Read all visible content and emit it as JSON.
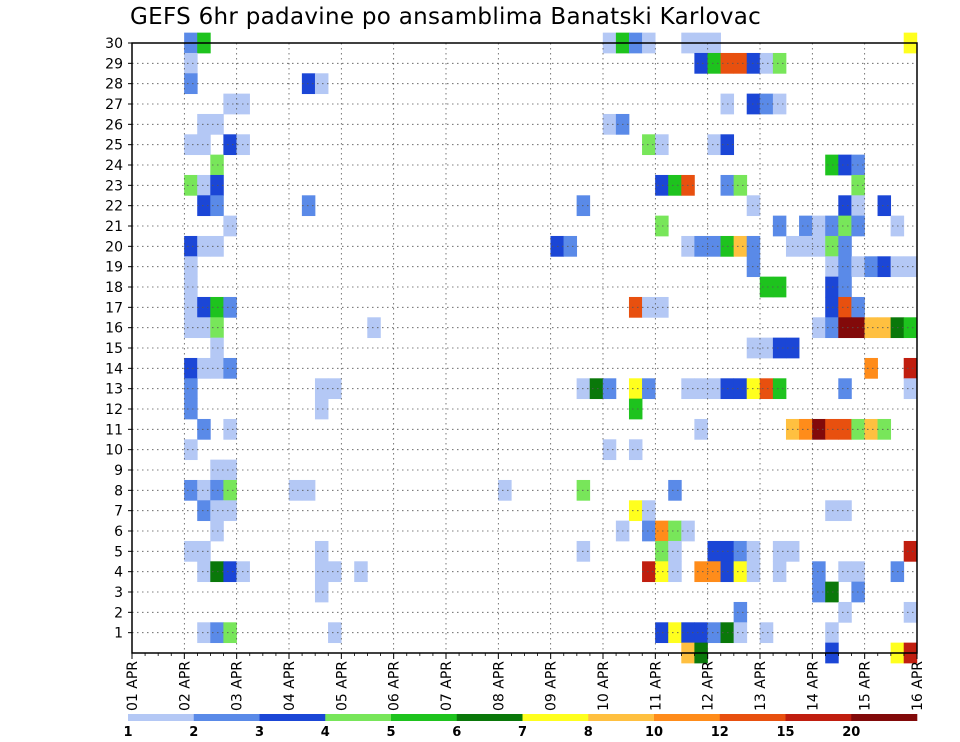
{
  "chart_data": {
    "type": "heatmap",
    "title": "GEFS 6hr padavine po ansamblima Banatski Karlovac",
    "x": {
      "unit": "6-hour step",
      "range_steps": [
        0,
        60
      ],
      "tick_labels": [
        "01 APR",
        "02 APR",
        "03 APR",
        "04 APR",
        "05 APR",
        "06 APR",
        "07 APR",
        "08 APR",
        "09 APR",
        "10 APR",
        "11 APR",
        "12 APR",
        "13 APR",
        "14 APR",
        "15 APR",
        "16 APR"
      ]
    },
    "y": {
      "unit": "ensemble member",
      "range": [
        0,
        30
      ],
      "tick_labels": [
        "1",
        "2",
        "3",
        "4",
        "5",
        "6",
        "7",
        "8",
        "9",
        "10",
        "11",
        "12",
        "13",
        "14",
        "15",
        "16",
        "17",
        "18",
        "19",
        "20",
        "21",
        "22",
        "23",
        "24",
        "25",
        "26",
        "27",
        "28",
        "29",
        "30"
      ]
    },
    "grid": true,
    "colorbar": {
      "bins": [
        {
          "from": 1,
          "to": 2,
          "color": "#b4c8f5"
        },
        {
          "from": 2,
          "to": 3,
          "color": "#5a8ae8"
        },
        {
          "from": 3,
          "to": 4,
          "color": "#1b46d6"
        },
        {
          "from": 4,
          "to": 5,
          "color": "#78e65a"
        },
        {
          "from": 5,
          "to": 6,
          "color": "#1ec31e"
        },
        {
          "from": 6,
          "to": 7,
          "color": "#0a780a"
        },
        {
          "from": 7,
          "to": 8,
          "color": "#ffff1e"
        },
        {
          "from": 8,
          "to": 10,
          "color": "#ffc040"
        },
        {
          "from": 10,
          "to": 12,
          "color": "#ff8c1a"
        },
        {
          "from": 12,
          "to": 15,
          "color": "#e8500f"
        },
        {
          "from": 15,
          "to": 20,
          "color": "#c01e0f"
        },
        {
          "from": 20,
          "to": 30,
          "color": "#820a0a"
        }
      ],
      "tick_labels": [
        "1",
        "2",
        "3",
        "4",
        "5",
        "6",
        "7",
        "8",
        "10",
        "12",
        "15",
        "20"
      ]
    },
    "cells_note": "each cell: [time step (6h), member, color bin index 0-11]",
    "cells": [
      [
        4,
        30,
        1
      ],
      [
        5,
        30,
        4
      ],
      [
        36,
        30,
        0
      ],
      [
        37,
        30,
        4
      ],
      [
        38,
        30,
        1
      ],
      [
        39,
        30,
        0
      ],
      [
        42,
        30,
        0
      ],
      [
        43,
        30,
        0
      ],
      [
        44,
        30,
        0
      ],
      [
        59,
        30,
        6
      ],
      [
        4,
        29,
        0
      ],
      [
        43,
        29,
        2
      ],
      [
        44,
        29,
        4
      ],
      [
        45,
        29,
        9
      ],
      [
        46,
        29,
        9
      ],
      [
        47,
        29,
        2
      ],
      [
        48,
        29,
        0
      ],
      [
        49,
        29,
        3
      ],
      [
        4,
        28,
        1
      ],
      [
        13,
        28,
        2
      ],
      [
        14,
        28,
        0
      ],
      [
        7,
        27,
        0
      ],
      [
        8,
        27,
        0
      ],
      [
        45,
        27,
        0
      ],
      [
        47,
        27,
        2
      ],
      [
        48,
        27,
        1
      ],
      [
        49,
        27,
        0
      ],
      [
        5,
        26,
        0
      ],
      [
        6,
        26,
        0
      ],
      [
        36,
        26,
        0
      ],
      [
        37,
        26,
        1
      ],
      [
        4,
        25,
        0
      ],
      [
        5,
        25,
        0
      ],
      [
        7,
        25,
        2
      ],
      [
        8,
        25,
        0
      ],
      [
        39,
        25,
        3
      ],
      [
        40,
        25,
        0
      ],
      [
        44,
        25,
        0
      ],
      [
        45,
        25,
        2
      ],
      [
        6,
        24,
        3
      ],
      [
        53,
        24,
        4
      ],
      [
        54,
        24,
        2
      ],
      [
        55,
        24,
        1
      ],
      [
        4,
        23,
        3
      ],
      [
        5,
        23,
        0
      ],
      [
        6,
        23,
        2
      ],
      [
        40,
        23,
        2
      ],
      [
        41,
        23,
        4
      ],
      [
        42,
        23,
        9
      ],
      [
        45,
        23,
        1
      ],
      [
        46,
        23,
        3
      ],
      [
        55,
        23,
        3
      ],
      [
        5,
        22,
        2
      ],
      [
        6,
        22,
        1
      ],
      [
        13,
        22,
        1
      ],
      [
        34,
        22,
        1
      ],
      [
        47,
        22,
        0
      ],
      [
        54,
        22,
        2
      ],
      [
        55,
        22,
        0
      ],
      [
        57,
        22,
        2
      ],
      [
        7,
        21,
        0
      ],
      [
        40,
        21,
        3
      ],
      [
        49,
        21,
        1
      ],
      [
        51,
        21,
        1
      ],
      [
        52,
        21,
        0
      ],
      [
        53,
        21,
        1
      ],
      [
        54,
        21,
        3
      ],
      [
        55,
        21,
        1
      ],
      [
        58,
        21,
        0
      ],
      [
        4,
        20,
        2
      ],
      [
        5,
        20,
        0
      ],
      [
        6,
        20,
        0
      ],
      [
        32,
        20,
        2
      ],
      [
        33,
        20,
        1
      ],
      [
        42,
        20,
        0
      ],
      [
        43,
        20,
        1
      ],
      [
        44,
        20,
        1
      ],
      [
        45,
        20,
        4
      ],
      [
        46,
        20,
        7
      ],
      [
        47,
        20,
        1
      ],
      [
        50,
        20,
        0
      ],
      [
        51,
        20,
        0
      ],
      [
        52,
        20,
        0
      ],
      [
        53,
        20,
        3
      ],
      [
        54,
        20,
        1
      ],
      [
        4,
        19,
        0
      ],
      [
        47,
        19,
        1
      ],
      [
        53,
        19,
        0
      ],
      [
        54,
        19,
        1
      ],
      [
        55,
        19,
        0
      ],
      [
        56,
        19,
        1
      ],
      [
        57,
        19,
        2
      ],
      [
        58,
        19,
        0
      ],
      [
        59,
        19,
        0
      ],
      [
        4,
        18,
        0
      ],
      [
        48,
        18,
        4
      ],
      [
        49,
        18,
        4
      ],
      [
        53,
        18,
        2
      ],
      [
        54,
        18,
        1
      ],
      [
        4,
        17,
        0
      ],
      [
        5,
        17,
        2
      ],
      [
        6,
        17,
        4
      ],
      [
        7,
        17,
        1
      ],
      [
        38,
        17,
        9
      ],
      [
        39,
        17,
        0
      ],
      [
        40,
        17,
        0
      ],
      [
        53,
        17,
        2
      ],
      [
        54,
        17,
        9
      ],
      [
        55,
        17,
        1
      ],
      [
        4,
        16,
        0
      ],
      [
        5,
        16,
        0
      ],
      [
        6,
        16,
        3
      ],
      [
        18,
        16,
        0
      ],
      [
        52,
        16,
        0
      ],
      [
        53,
        16,
        1
      ],
      [
        54,
        16,
        11
      ],
      [
        55,
        16,
        11
      ],
      [
        56,
        16,
        7
      ],
      [
        57,
        16,
        7
      ],
      [
        58,
        16,
        5
      ],
      [
        59,
        16,
        4
      ],
      [
        6,
        15,
        0
      ],
      [
        47,
        15,
        0
      ],
      [
        48,
        15,
        0
      ],
      [
        49,
        15,
        2
      ],
      [
        50,
        15,
        2
      ],
      [
        4,
        14,
        2
      ],
      [
        5,
        14,
        0
      ],
      [
        6,
        14,
        0
      ],
      [
        7,
        14,
        1
      ],
      [
        56,
        14,
        8
      ],
      [
        59,
        14,
        10
      ],
      [
        4,
        13,
        1
      ],
      [
        14,
        13,
        0
      ],
      [
        15,
        13,
        0
      ],
      [
        34,
        13,
        0
      ],
      [
        35,
        13,
        5
      ],
      [
        36,
        13,
        1
      ],
      [
        38,
        13,
        6
      ],
      [
        39,
        13,
        1
      ],
      [
        42,
        13,
        0
      ],
      [
        43,
        13,
        0
      ],
      [
        44,
        13,
        0
      ],
      [
        45,
        13,
        2
      ],
      [
        46,
        13,
        2
      ],
      [
        47,
        13,
        6
      ],
      [
        48,
        13,
        9
      ],
      [
        49,
        13,
        4
      ],
      [
        54,
        13,
        1
      ],
      [
        59,
        13,
        0
      ],
      [
        4,
        12,
        1
      ],
      [
        14,
        12,
        0
      ],
      [
        38,
        12,
        4
      ],
      [
        5,
        11,
        1
      ],
      [
        7,
        11,
        0
      ],
      [
        43,
        11,
        0
      ],
      [
        50,
        11,
        7
      ],
      [
        51,
        11,
        8
      ],
      [
        52,
        11,
        11
      ],
      [
        53,
        11,
        9
      ],
      [
        54,
        11,
        9
      ],
      [
        55,
        11,
        3
      ],
      [
        56,
        11,
        7
      ],
      [
        57,
        11,
        3
      ],
      [
        4,
        10,
        0
      ],
      [
        36,
        10,
        0
      ],
      [
        38,
        10,
        0
      ],
      [
        6,
        9,
        0
      ],
      [
        7,
        9,
        0
      ],
      [
        4,
        8,
        1
      ],
      [
        5,
        8,
        0
      ],
      [
        6,
        8,
        1
      ],
      [
        7,
        8,
        3
      ],
      [
        12,
        8,
        0
      ],
      [
        13,
        8,
        0
      ],
      [
        28,
        8,
        0
      ],
      [
        34,
        8,
        3
      ],
      [
        41,
        8,
        1
      ],
      [
        5,
        7,
        1
      ],
      [
        6,
        7,
        0
      ],
      [
        7,
        7,
        0
      ],
      [
        38,
        7,
        6
      ],
      [
        39,
        7,
        0
      ],
      [
        53,
        7,
        0
      ],
      [
        54,
        7,
        0
      ],
      [
        6,
        6,
        0
      ],
      [
        37,
        6,
        0
      ],
      [
        39,
        6,
        1
      ],
      [
        40,
        6,
        8
      ],
      [
        41,
        6,
        3
      ],
      [
        42,
        6,
        0
      ],
      [
        4,
        5,
        0
      ],
      [
        5,
        5,
        0
      ],
      [
        14,
        5,
        0
      ],
      [
        34,
        5,
        0
      ],
      [
        40,
        5,
        3
      ],
      [
        41,
        5,
        0
      ],
      [
        44,
        5,
        2
      ],
      [
        45,
        5,
        2
      ],
      [
        46,
        5,
        1
      ],
      [
        47,
        5,
        0
      ],
      [
        49,
        5,
        0
      ],
      [
        50,
        5,
        0
      ],
      [
        59,
        5,
        10
      ],
      [
        5,
        4,
        0
      ],
      [
        6,
        4,
        5
      ],
      [
        7,
        4,
        2
      ],
      [
        8,
        4,
        0
      ],
      [
        14,
        4,
        0
      ],
      [
        15,
        4,
        0
      ],
      [
        17,
        4,
        0
      ],
      [
        39,
        4,
        10
      ],
      [
        40,
        4,
        6
      ],
      [
        41,
        4,
        0
      ],
      [
        43,
        4,
        8
      ],
      [
        44,
        4,
        8
      ],
      [
        45,
        4,
        2
      ],
      [
        46,
        4,
        6
      ],
      [
        47,
        4,
        0
      ],
      [
        49,
        4,
        0
      ],
      [
        52,
        4,
        1
      ],
      [
        54,
        4,
        0
      ],
      [
        55,
        4,
        0
      ],
      [
        58,
        4,
        1
      ],
      [
        14,
        3,
        0
      ],
      [
        52,
        3,
        1
      ],
      [
        53,
        3,
        5
      ],
      [
        55,
        3,
        1
      ],
      [
        46,
        2,
        1
      ],
      [
        54,
        2,
        0
      ],
      [
        59,
        2,
        0
      ],
      [
        5,
        1,
        0
      ],
      [
        6,
        1,
        1
      ],
      [
        7,
        1,
        3
      ],
      [
        15,
        1,
        0
      ],
      [
        40,
        1,
        2
      ],
      [
        41,
        1,
        6
      ],
      [
        42,
        1,
        2
      ],
      [
        43,
        1,
        2
      ],
      [
        44,
        1,
        1
      ],
      [
        45,
        1,
        5
      ],
      [
        46,
        1,
        0
      ],
      [
        48,
        1,
        0
      ],
      [
        53,
        1,
        0
      ],
      [
        42,
        0,
        7
      ],
      [
        43,
        0,
        5
      ],
      [
        53,
        0,
        2
      ],
      [
        58,
        0,
        6
      ],
      [
        59,
        0,
        10
      ]
    ]
  }
}
